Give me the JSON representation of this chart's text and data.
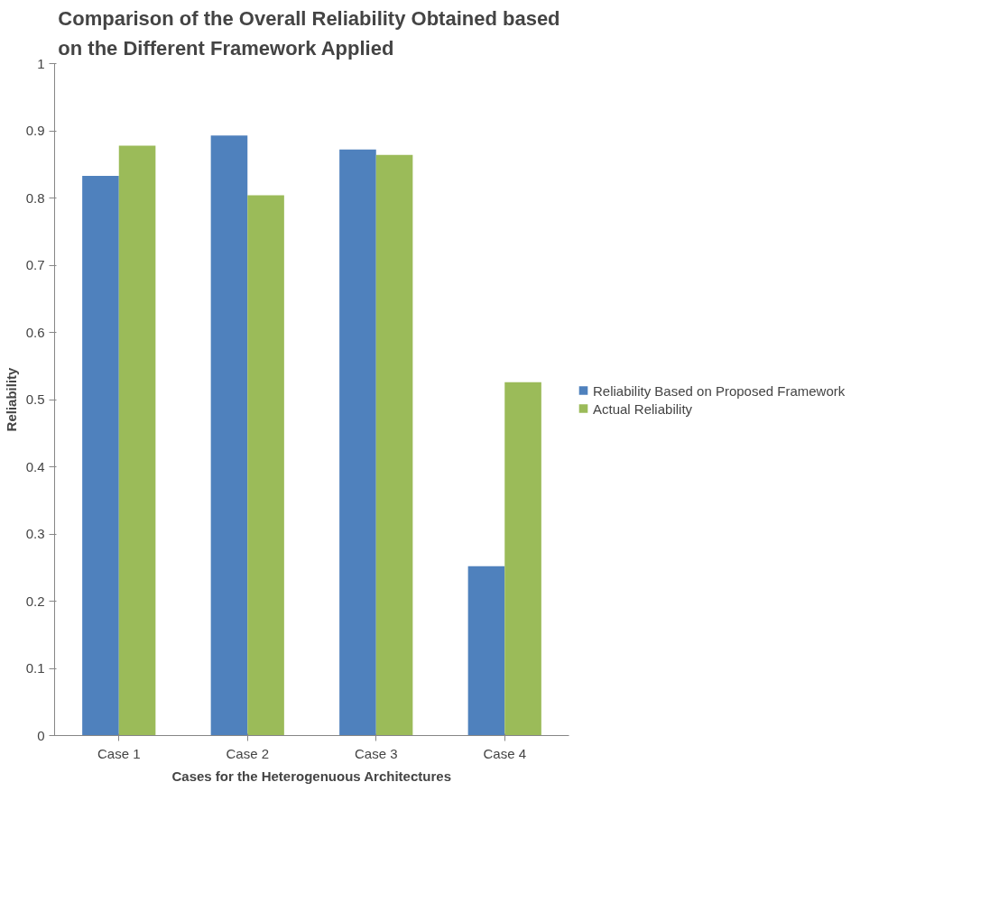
{
  "chart_data": {
    "type": "bar",
    "title": "Comparison  of the Overall Reliability Obtained based\non the Different  Framework Applied",
    "xlabel": "Cases for the Heterogenuous Architectures",
    "ylabel": "Reliability",
    "categories": [
      "Case 1",
      "Case 2",
      "Case 3",
      "Case 4"
    ],
    "series": [
      {
        "name": "Reliability Based on Proposed Framework",
        "color": "#4f81bd",
        "values": [
          0.833,
          0.893,
          0.872,
          0.252
        ]
      },
      {
        "name": "Actual Reliability",
        "color": "#9bbb59",
        "values": [
          0.878,
          0.804,
          0.864,
          0.526
        ]
      }
    ],
    "ylim": [
      0,
      1
    ],
    "yticks": [
      0,
      0.1,
      0.2,
      0.3,
      0.4,
      0.5,
      0.6,
      0.7,
      0.8,
      0.9,
      1
    ],
    "grid": false,
    "legend": "right"
  }
}
